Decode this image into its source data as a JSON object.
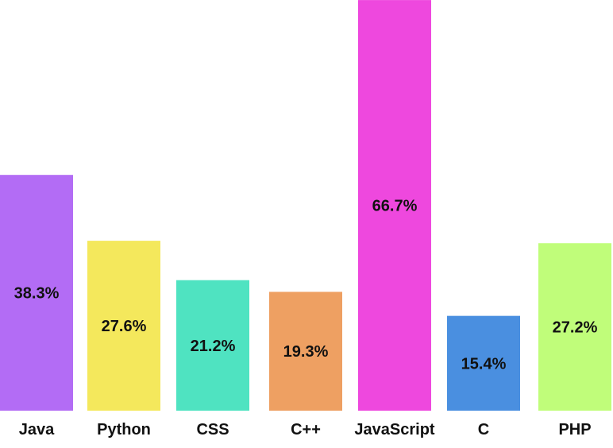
{
  "chart_data": {
    "type": "bar",
    "categories": [
      "Java",
      "Python",
      "CSS",
      "C++",
      "JavaScript",
      "C",
      "PHP"
    ],
    "values": [
      38.3,
      27.6,
      21.2,
      19.3,
      66.7,
      15.4,
      27.2
    ],
    "value_labels": [
      "38.3%",
      "27.6%",
      "21.2%",
      "19.3%",
      "66.7%",
      "15.4%",
      "27.2%"
    ],
    "colors": [
      "#b36cf5",
      "#f4e85c",
      "#4fe3c1",
      "#eea062",
      "#ee48de",
      "#4a8fe0",
      "#c0fd7a"
    ],
    "title": "",
    "xlabel": "",
    "ylabel": "",
    "grid": false,
    "legend": "none"
  }
}
